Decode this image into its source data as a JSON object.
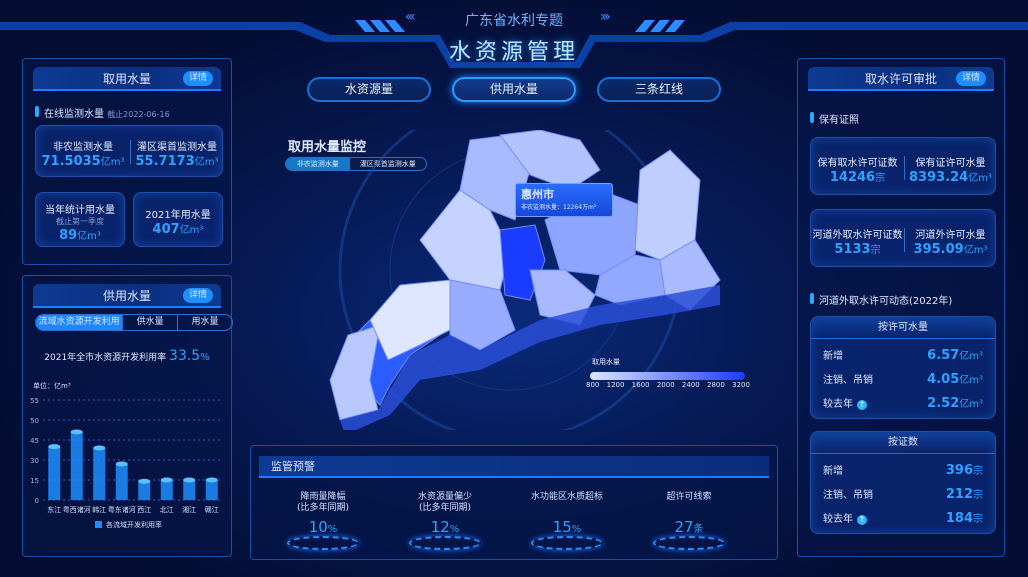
{
  "header": {
    "subtitle": "广东省水利专题",
    "title": "水资源管理",
    "nav": [
      {
        "label": "水资源量",
        "active": false
      },
      {
        "label": "供用水量",
        "active": true
      },
      {
        "label": "三条红线",
        "active": false
      }
    ]
  },
  "left_top": {
    "title": "取用水量",
    "detail": "详情",
    "section": "在线监测水量",
    "section_date": "截止2022-06-16",
    "card1": [
      {
        "label": "非农监测水量",
        "value": "71.5035",
        "unit": "亿m³"
      },
      {
        "label": "灌区渠首监测水量",
        "value": "55.7173",
        "unit": "亿m³"
      }
    ],
    "card2": {
      "label": "当年统计用水量",
      "note": "截止第一季度",
      "value": "89",
      "unit": "亿m³"
    },
    "card3": {
      "label": "2021年用水量",
      "value": "407",
      "unit": "亿m³"
    }
  },
  "left_bottom": {
    "title": "供用水量",
    "detail": "详情",
    "tabs": [
      "流域水资源开发利用",
      "供水量",
      "用水量"
    ],
    "rate_label": "2021年全市水资源开发利用率",
    "rate_value": "33.5",
    "rate_unit": "%"
  },
  "chart_data": {
    "type": "bar",
    "ylabel": "单位：亿m³",
    "yticks": [
      0,
      15,
      30,
      45,
      50,
      55
    ],
    "categories": [
      "东江",
      "粤西诸河",
      "韩江",
      "粤东诸河",
      "西江",
      "北江",
      "湘江",
      "赣江"
    ],
    "series": [
      {
        "name": "各流域开发利用率",
        "values": [
          40,
          47,
          39,
          27,
          14,
          15,
          15,
          15
        ]
      }
    ],
    "color": "#1e8eff",
    "grid": true,
    "legend": "bottom"
  },
  "map": {
    "title": "取用水量监控",
    "tabs": [
      "非农监测水量",
      "灌区渠首监测水量"
    ],
    "tooltip": {
      "city": "惠州市",
      "label": "非农监测水量：12264万m³"
    },
    "legend": {
      "title": "取用水量",
      "ticks": [
        "800",
        "1200",
        "1600",
        "2000",
        "2400",
        "2800",
        "3200"
      ],
      "from": "#dfe6ff",
      "to": "#1a3cff"
    }
  },
  "warning": {
    "title": "监管预警",
    "items": [
      {
        "label": "降雨量降幅",
        "sub": "(比多年同期)",
        "value": "10",
        "unit": "%"
      },
      {
        "label": "水资源量偏少",
        "sub": "(比多年同期)",
        "value": "12",
        "unit": "%"
      },
      {
        "label": "水功能区水质超标",
        "sub": "",
        "value": "15",
        "unit": "%"
      },
      {
        "label": "超许可线索",
        "sub": "",
        "value": "27",
        "unit": "条"
      }
    ]
  },
  "right": {
    "title": "取水许可审批",
    "detail": "详情",
    "section1": "保有证照",
    "card1": [
      {
        "label": "保有取水许可证数",
        "value": "14246",
        "unit": "宗"
      },
      {
        "label": "保有证许可水量",
        "value": "8393.24",
        "unit": "亿m³"
      }
    ],
    "card2": [
      {
        "label": "河道外取水许可证数",
        "value": "5133",
        "unit": "宗"
      },
      {
        "label": "河道外许可水量",
        "value": "395.09",
        "unit": "亿m³"
      }
    ],
    "section2": "河道外取水许可动态(2022年)",
    "box1": {
      "title": "按许可水量",
      "rows": [
        {
          "label": "新增",
          "value": "6.57",
          "unit": "亿m³"
        },
        {
          "label": "注销、吊销",
          "value": "4.05",
          "unit": "亿m³"
        },
        {
          "label": "较去年",
          "value": "2.52",
          "unit": "亿m³",
          "up": true
        }
      ]
    },
    "box2": {
      "title": "按证数",
      "rows": [
        {
          "label": "新增",
          "value": "396",
          "unit": "宗"
        },
        {
          "label": "注销、吊销",
          "value": "212",
          "unit": "宗"
        },
        {
          "label": "较去年",
          "value": "184",
          "unit": "宗",
          "up": true
        }
      ]
    }
  }
}
